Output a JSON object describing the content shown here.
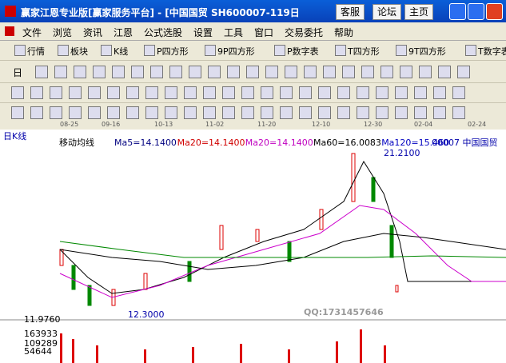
{
  "window": {
    "title": "赢家江恩专业版[赢家服务平台] - [中国国贸  SH600007-119日",
    "buttons": [
      "客服",
      "论坛",
      "主页"
    ]
  },
  "menu": [
    "文件",
    "浏览",
    "资讯",
    "江恩",
    "公式选股",
    "设置",
    "工具",
    "窗口",
    "交易委托",
    "帮助"
  ],
  "toolbar": [
    "行情",
    "板块",
    "K线",
    "P四方形",
    "9P四方形",
    "P数字表",
    "T四方形",
    "9T四方形",
    "T数字表"
  ],
  "toolbar2_label": "日",
  "date_axis": [
    "08-25",
    "09-16",
    "10-13",
    "11-02",
    "11-20",
    "12-10",
    "12-30",
    "02-04",
    "02-24"
  ],
  "chart": {
    "period": "日K线",
    "legend_title": "移动均线",
    "legend": [
      {
        "text": "Ma5=14.1400",
        "color": "#000080"
      },
      {
        "text": "Ma20=14.1400",
        "color": "#d00000"
      },
      {
        "text": "Ma20=14.1400",
        "color": "#c000c0"
      },
      {
        "text": "Ma60=16.0083",
        "color": "#000000"
      },
      {
        "text": "Ma120=15.460",
        "color": "#0000c0"
      }
    ],
    "stock": "00007  中国国贸",
    "high_label": "21.2100",
    "low_label": "12.3000",
    "axis_low": "11.9760",
    "volume_ticks": [
      "163933",
      "109289",
      "54644"
    ],
    "watermark": "QQ:1731457646"
  }
}
